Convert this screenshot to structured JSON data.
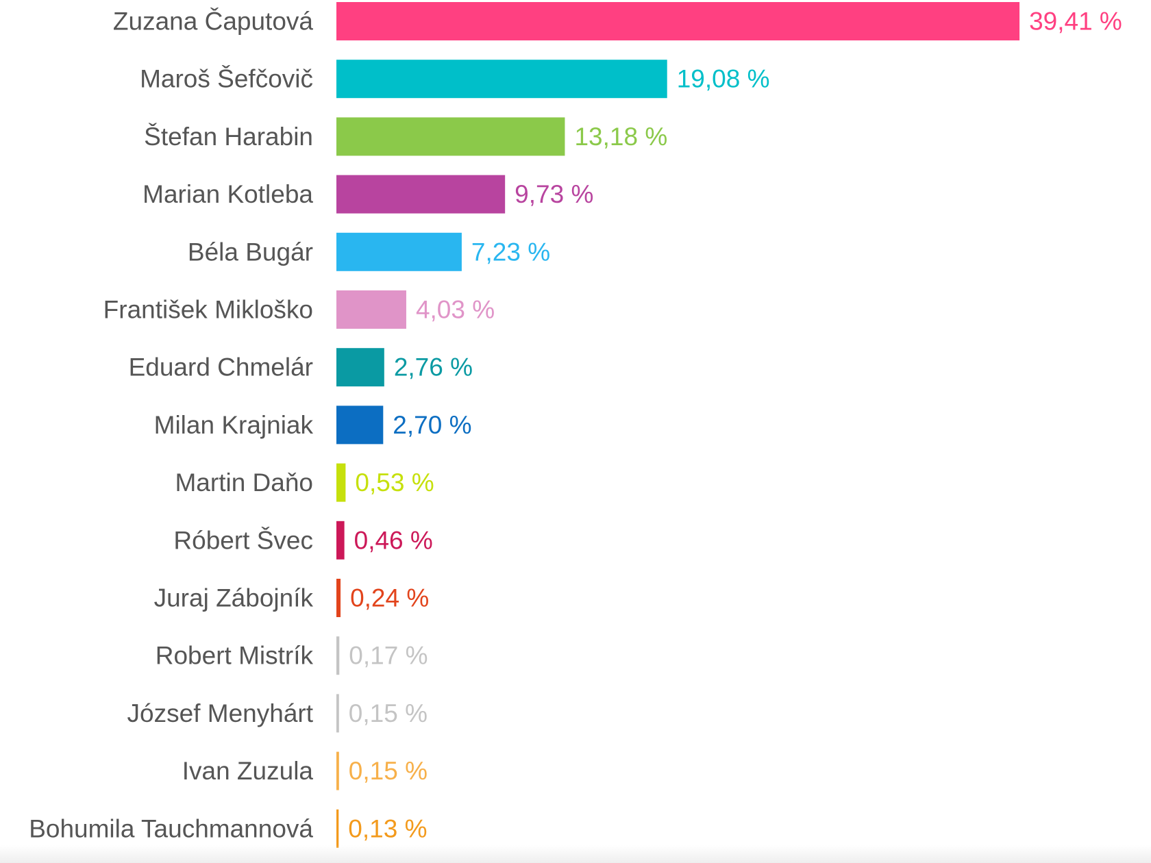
{
  "chart_data": {
    "type": "bar",
    "orientation": "horizontal",
    "categories": [
      "Zuzana Čaputová",
      "Maroš Šefčovič",
      "Štefan Harabin",
      "Marian Kotleba",
      "Béla Bugár",
      "František Mikloško",
      "Eduard Chmelár",
      "Milan Krajniak",
      "Martin Daňo",
      "Róbert Švec",
      "Juraj Zábojník",
      "Robert Mistrík",
      "József Menyhárt",
      "Ivan Zuzula",
      "Bohumila Tauchmannová"
    ],
    "values": [
      39.41,
      19.08,
      13.18,
      9.73,
      7.23,
      4.03,
      2.76,
      2.7,
      0.53,
      0.46,
      0.24,
      0.17,
      0.15,
      0.15,
      0.13
    ],
    "value_labels": [
      "39,41 %",
      "19,08 %",
      "13,18 %",
      "9,73 %",
      "7,23 %",
      "4,03 %",
      "2,76 %",
      "2,70 %",
      "0,53 %",
      "0,46 %",
      "0,24 %",
      "0,17 %",
      "0,15 %",
      "0,15 %",
      "0,13 %"
    ],
    "colors": [
      "#ff4081",
      "#00bfc9",
      "#8bc94a",
      "#b8449f",
      "#29b6f0",
      "#e094c8",
      "#0a9aa3",
      "#0c6ec2",
      "#c6e00c",
      "#cc1858",
      "#e2441c",
      "#c4c4c4",
      "#c4c4c4",
      "#f7b04a",
      "#f39a1c"
    ],
    "title": "",
    "xlabel": "",
    "ylabel": "",
    "grid": false,
    "legend": "none"
  }
}
